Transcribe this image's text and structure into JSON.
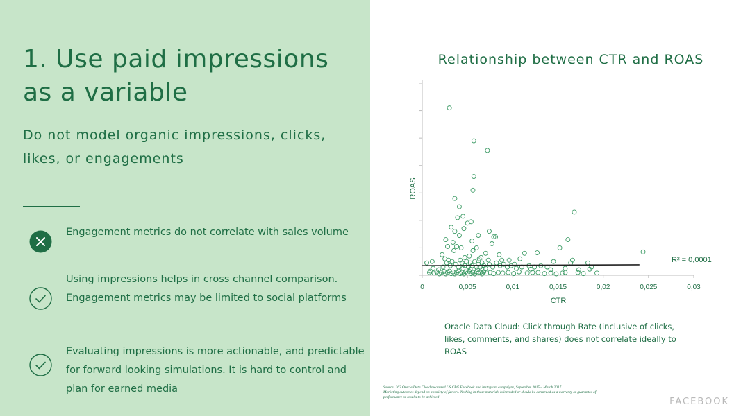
{
  "left": {
    "title": "1. Use paid impressions as a variable",
    "subtitle": "Do not model organic impressions, clicks, likes, or engagements",
    "points": [
      {
        "icon": "x-circle-icon",
        "lines": [
          "Engagement metrics do not correlate with sales volume"
        ]
      },
      {
        "icon": "check-circle-icon",
        "lines": [
          "Using impressions helps in cross channel comparison.",
          "Engagement metrics may be limited to social platforms"
        ]
      },
      {
        "icon": "check-circle-icon",
        "lines": [
          "Evaluating impressions is more actionable, and predictable",
          "for forward looking simulations. It is hard to control and",
          "plan for earned media"
        ]
      }
    ]
  },
  "colors": {
    "left_background": "#c7e5c9",
    "text_green": "#1f6e45",
    "marker_green": "#3b9a64",
    "trend_line": "#222222"
  },
  "chart_data": {
    "type": "scatter",
    "title": "Relationship between CTR and ROAS",
    "xlabel": "CTR",
    "ylabel": "ROAS",
    "xlim": [
      0,
      0.03
    ],
    "x_ticks": [
      "0",
      "0,005",
      "0,01",
      "0,015",
      "0,02",
      "0,025",
      "0,03"
    ],
    "ylim": [
      0,
      7
    ],
    "y_ticks_labeled": false,
    "y_tick_count": 7,
    "grid": false,
    "marker": "hollow-circle",
    "annotation": "R² = 0,0001",
    "trendline": {
      "x": [
        0,
        0.024
      ],
      "y": [
        0.35,
        0.38
      ]
    },
    "points": [
      [
        0.003,
        6.1
      ],
      [
        0.0057,
        4.9
      ],
      [
        0.0072,
        4.55
      ],
      [
        0.0057,
        3.6
      ],
      [
        0.0056,
        3.1
      ],
      [
        0.0036,
        2.8
      ],
      [
        0.0041,
        2.5
      ],
      [
        0.0168,
        2.3
      ],
      [
        0.0039,
        2.1
      ],
      [
        0.0045,
        2.15
      ],
      [
        0.005,
        1.9
      ],
      [
        0.0054,
        1.95
      ],
      [
        0.0032,
        1.75
      ],
      [
        0.0046,
        1.7
      ],
      [
        0.0074,
        1.6
      ],
      [
        0.0036,
        1.6
      ],
      [
        0.0041,
        1.45
      ],
      [
        0.0062,
        1.45
      ],
      [
        0.0079,
        1.4
      ],
      [
        0.0081,
        1.4
      ],
      [
        0.0161,
        1.3
      ],
      [
        0.0026,
        1.3
      ],
      [
        0.0034,
        1.2
      ],
      [
        0.0055,
        1.25
      ],
      [
        0.0077,
        1.15
      ],
      [
        0.0038,
        1.05
      ],
      [
        0.006,
        1.0
      ],
      [
        0.0152,
        1.0
      ],
      [
        0.0244,
        0.85
      ],
      [
        0.0022,
        0.75
      ],
      [
        0.0056,
        0.9
      ],
      [
        0.007,
        0.8
      ],
      [
        0.0085,
        0.75
      ],
      [
        0.0113,
        0.8
      ],
      [
        0.0127,
        0.82
      ],
      [
        0.0166,
        0.55
      ],
      [
        0.0183,
        0.45
      ],
      [
        0.0025,
        0.6
      ],
      [
        0.0047,
        0.65
      ],
      [
        0.0063,
        0.6
      ],
      [
        0.0073,
        0.55
      ],
      [
        0.0096,
        0.55
      ],
      [
        0.0108,
        0.6
      ],
      [
        0.0145,
        0.5
      ],
      [
        0.0164,
        0.45
      ],
      [
        0.0005,
        0.45
      ],
      [
        0.0012,
        0.25
      ],
      [
        0.0018,
        0.2
      ],
      [
        0.0023,
        0.3
      ],
      [
        0.0027,
        0.45
      ],
      [
        0.0029,
        0.55
      ],
      [
        0.0031,
        0.35
      ],
      [
        0.0033,
        0.5
      ],
      [
        0.0037,
        0.4
      ],
      [
        0.004,
        0.3
      ],
      [
        0.0042,
        0.55
      ],
      [
        0.0044,
        0.45
      ],
      [
        0.0047,
        0.35
      ],
      [
        0.0049,
        0.5
      ],
      [
        0.0051,
        0.3
      ],
      [
        0.0053,
        0.45
      ],
      [
        0.0055,
        0.35
      ],
      [
        0.0058,
        0.5
      ],
      [
        0.006,
        0.3
      ],
      [
        0.0062,
        0.4
      ],
      [
        0.0064,
        0.3
      ],
      [
        0.0066,
        0.45
      ],
      [
        0.0068,
        0.35
      ],
      [
        0.007,
        0.25
      ],
      [
        0.0074,
        0.4
      ],
      [
        0.0078,
        0.3
      ],
      [
        0.0082,
        0.45
      ],
      [
        0.0086,
        0.35
      ],
      [
        0.009,
        0.4
      ],
      [
        0.0094,
        0.3
      ],
      [
        0.0098,
        0.35
      ],
      [
        0.0102,
        0.4
      ],
      [
        0.011,
        0.3
      ],
      [
        0.0118,
        0.35
      ],
      [
        0.0124,
        0.3
      ],
      [
        0.0131,
        0.35
      ],
      [
        0.0138,
        0.3
      ],
      [
        0.0008,
        0.1
      ],
      [
        0.0013,
        0.08
      ],
      [
        0.0016,
        0.12
      ],
      [
        0.0019,
        0.05
      ],
      [
        0.0021,
        0.1
      ],
      [
        0.0024,
        0.14
      ],
      [
        0.0026,
        0.05
      ],
      [
        0.0028,
        0.1
      ],
      [
        0.003,
        0.15
      ],
      [
        0.0032,
        0.06
      ],
      [
        0.0034,
        0.12
      ],
      [
        0.0036,
        0.05
      ],
      [
        0.0038,
        0.1
      ],
      [
        0.004,
        0.15
      ],
      [
        0.0042,
        0.06
      ],
      [
        0.0044,
        0.1
      ],
      [
        0.0046,
        0.05
      ],
      [
        0.0048,
        0.12
      ],
      [
        0.005,
        0.08
      ],
      [
        0.0052,
        0.14
      ],
      [
        0.0054,
        0.06
      ],
      [
        0.0056,
        0.1
      ],
      [
        0.0058,
        0.05
      ],
      [
        0.006,
        0.12
      ],
      [
        0.0062,
        0.08
      ],
      [
        0.0064,
        0.1
      ],
      [
        0.0066,
        0.05
      ],
      [
        0.0068,
        0.12
      ],
      [
        0.0071,
        0.08
      ],
      [
        0.0075,
        0.1
      ],
      [
        0.0079,
        0.06
      ],
      [
        0.0084,
        0.1
      ],
      [
        0.0089,
        0.08
      ],
      [
        0.0095,
        0.1
      ],
      [
        0.0101,
        0.06
      ],
      [
        0.0107,
        0.12
      ],
      [
        0.0116,
        0.08
      ],
      [
        0.0122,
        0.1
      ],
      [
        0.0128,
        0.1
      ],
      [
        0.0135,
        0.06
      ],
      [
        0.0142,
        0.08
      ],
      [
        0.0148,
        0.05
      ],
      [
        0.0155,
        0.08
      ],
      [
        0.0158,
        0.1
      ],
      [
        0.0172,
        0.1
      ],
      [
        0.0178,
        0.06
      ],
      [
        0.0193,
        0.08
      ],
      [
        0.0142,
        0.2
      ],
      [
        0.0158,
        0.25
      ],
      [
        0.0173,
        0.2
      ],
      [
        0.0185,
        0.22
      ],
      [
        0.0187,
        0.3
      ],
      [
        0.0011,
        0.5
      ],
      [
        0.0009,
        0.15
      ],
      [
        0.0045,
        0.25
      ],
      [
        0.0053,
        0.22
      ],
      [
        0.0061,
        0.2
      ],
      [
        0.0067,
        0.22
      ],
      [
        0.0035,
        0.9
      ],
      [
        0.0043,
        1.0
      ],
      [
        0.0028,
        1.05
      ],
      [
        0.0052,
        0.7
      ],
      [
        0.0065,
        0.65
      ],
      [
        0.0088,
        0.55
      ],
      [
        0.0104,
        0.25
      ],
      [
        0.012,
        0.22
      ]
    ]
  },
  "caption": "Oracle Data Cloud: Click through Rate (inclusive of clicks, likes, comments, and shares) does not correlate ideally to ROAS",
  "source_lines": [
    "Source: 262 Oracle Data Cloud measured US CPG Facebook and Instagram campaigns, September 2015 – March 2017",
    "Marketing outcomes depend on a variety of factors. Nothing in these materials is intended or should be construed as a warranty or guarantee of",
    "performance or results to be achieved"
  ],
  "brand": "FACEBOOK"
}
